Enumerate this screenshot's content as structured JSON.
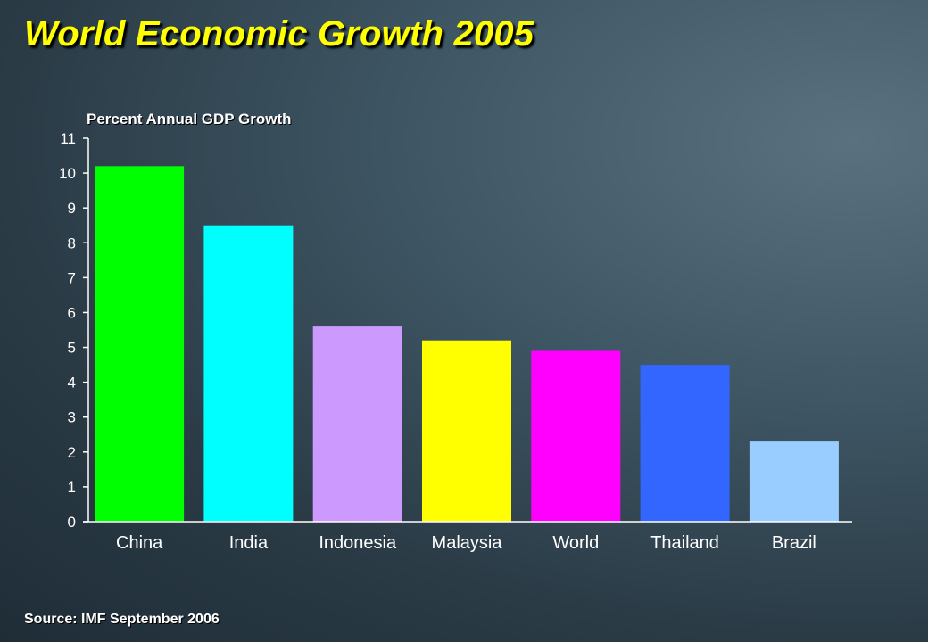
{
  "slide": {
    "title": "World Economic Growth 2005",
    "source": "Source: IMF September 2006"
  },
  "colors": {
    "title": "#ffff00",
    "text": "#ffffff",
    "axis": "#ffffff",
    "background": "#34495a"
  },
  "chart_data": {
    "type": "bar",
    "title": "",
    "xlabel": "",
    "ylabel": "Percent Annual GDP Growth",
    "categories": [
      "China",
      "India",
      "Indonesia",
      "Malaysia",
      "World",
      "Thailand",
      "Brazil"
    ],
    "values": [
      10.2,
      8.5,
      5.6,
      5.2,
      4.9,
      4.5,
      2.3
    ],
    "bar_colors": [
      "#00ff00",
      "#00ffff",
      "#cc99ff",
      "#ffff00",
      "#ff00ff",
      "#3366ff",
      "#99ccff"
    ],
    "ylim": [
      0,
      11
    ],
    "yticks": [
      0,
      1,
      2,
      3,
      4,
      5,
      6,
      7,
      8,
      9,
      10,
      11
    ],
    "grid": false,
    "legend": "none"
  }
}
